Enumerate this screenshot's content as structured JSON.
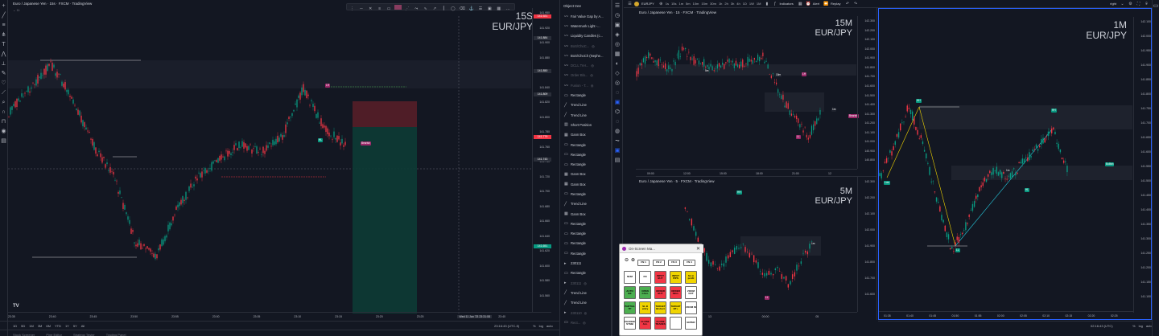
{
  "left_chart": {
    "title": "Euro / Japanese Yen · 15s · FXCM · TradingView",
    "big_tf": "15S",
    "big_pair": "EUR/JPY",
    "prices": [
      "141.950",
      "141.920",
      "141.900",
      "141.880",
      "141.860",
      "141.840",
      "141.820",
      "141.800",
      "141.780",
      "141.760",
      "141.740",
      "141.720",
      "141.700",
      "141.680",
      "141.660",
      "141.640",
      "141.620",
      "141.600",
      "141.580",
      "141.560"
    ],
    "price_tags": [
      {
        "label": "141.921",
        "color": "#f23645",
        "bind_hint": "top"
      },
      {
        "label": "141.884",
        "color": "#2a2e39"
      },
      {
        "label": "141.850",
        "color": "#2a2e39"
      },
      {
        "label": "141.809",
        "color": "#2a2e39"
      },
      {
        "label": "141.779",
        "color": "#f23645"
      },
      {
        "label": "141.743",
        "color": "#2a2e39"
      },
      {
        "label": "141.651",
        "color": "#089981"
      }
    ],
    "times": [
      "23:35",
      "23:40",
      "23:45",
      "23:50",
      "23:55",
      "23:00",
      "23:05",
      "23:10",
      "23:15",
      "23:20",
      "23:25",
      "Wed 11 Jan '23  23:31:08",
      "23:40"
    ],
    "bottom_ranges": [
      "1D",
      "5D",
      "1M",
      "3M",
      "6M",
      "YTD",
      "1Y",
      "5Y",
      "All"
    ],
    "bottom_time": "23:16:43 (UTC-5)",
    "bottom_opts": [
      "%",
      "log",
      "auto"
    ],
    "labels": {
      "lh": "LH",
      "hl": "HL",
      "bearish": "Bearish"
    }
  },
  "object_tree": {
    "header": "Object tree",
    "items": [
      {
        "icon": "〰",
        "label": "Fair Value Gap by A...",
        "dim": false
      },
      {
        "icon": "〰",
        "label": "Watermark Light -...",
        "dim": false
      },
      {
        "icon": "〰",
        "label": "Liquidity Candles (c...",
        "dim": false
      },
      {
        "icon": "〰",
        "label": "BoS/ChoC...",
        "dim": true
      },
      {
        "icon": "〰",
        "label": "BoS/ChoCh (Nephe...",
        "dim": false
      },
      {
        "icon": "〰",
        "label": "DCLL Trer...",
        "dim": true
      },
      {
        "icon": "〰",
        "label": "Order Blo...",
        "dim": true
      },
      {
        "icon": "〰",
        "label": "Fusion - T...",
        "dim": true
      },
      {
        "icon": "▭",
        "label": "Rectangle",
        "dim": false
      },
      {
        "icon": "╱",
        "label": "Trend Line",
        "dim": false
      },
      {
        "icon": "╱",
        "label": "Trend Line",
        "dim": false
      },
      {
        "icon": "▥",
        "label": "Short Position",
        "dim": false
      },
      {
        "icon": "▦",
        "label": "Gann Box",
        "dim": false
      },
      {
        "icon": "▭",
        "label": "Rectangle",
        "dim": false
      },
      {
        "icon": "▭",
        "label": "Rectangle",
        "dim": false
      },
      {
        "icon": "▭",
        "label": "Rectangle",
        "dim": false
      },
      {
        "icon": "▦",
        "label": "Gann Box",
        "dim": false
      },
      {
        "icon": "▦",
        "label": "Gann Box",
        "dim": false
      },
      {
        "icon": "▭",
        "label": "Rectangle",
        "dim": false
      },
      {
        "icon": "╱",
        "label": "Trend Line",
        "dim": false
      },
      {
        "icon": "▦",
        "label": "Gann Box",
        "dim": false
      },
      {
        "icon": "▭",
        "label": "Rectangle",
        "dim": false
      },
      {
        "icon": "▭",
        "label": "Rectangle",
        "dim": false
      },
      {
        "icon": "▭",
        "label": "Rectangle",
        "dim": false
      },
      {
        "icon": "▭",
        "label": "Rectangle",
        "dim": false
      },
      {
        "icon": "▸",
        "label": "230111",
        "dim": false
      },
      {
        "icon": "▭",
        "label": "Rectangle",
        "dim": false
      },
      {
        "icon": "▸",
        "label": "230111",
        "dim": true
      },
      {
        "icon": "╱",
        "label": "Trend Line",
        "dim": false
      },
      {
        "icon": "╱",
        "label": "Trend Line",
        "dim": false
      },
      {
        "icon": "▸",
        "label": "230110",
        "dim": true
      },
      {
        "icon": "▭",
        "label": "Rect...",
        "dim": true
      }
    ]
  },
  "top_toolbar": {
    "symbol": "EURJPY",
    "timeframes": [
      "1s",
      "15s",
      "1m",
      "5m",
      "10m",
      "15m",
      "30m",
      "1h",
      "2h",
      "3h",
      "4h",
      "1D",
      "1W",
      "1M"
    ],
    "indicators": "Indicators",
    "alert": "Alert",
    "replay": "Replay",
    "layout": "right"
  },
  "chart_15m": {
    "title": "Euro / Japanese Yen · 15 · FXCM · TradingView",
    "big_tf": "15M",
    "big_pair": "EUR/JPY",
    "prices": [
      "142.300",
      "142.200",
      "142.100",
      "142.000",
      "141.900",
      "141.800",
      "141.700",
      "141.600",
      "141.500",
      "141.400",
      "141.300",
      "141.200",
      "141.100",
      "141.000",
      "140.900",
      "140.800"
    ],
    "times": [
      "09:00",
      "12:00",
      "15:00",
      "18:00",
      "21:00",
      "12"
    ],
    "labels": {
      "lh": "LH",
      "hl": "HL",
      "ll": "LL",
      "tf1": "5m",
      "tf2": "15m",
      "tf3": "1m",
      "bearish": "Bearish"
    }
  },
  "chart_5m": {
    "title": "Euro / Japanese Yen · 5 · FXCM · TradingView",
    "big_tf": "5M",
    "big_pair": "EUR/JPY",
    "prices": [
      "142.300",
      "142.200",
      "142.100",
      "142.000",
      "141.900",
      "141.800",
      "141.700",
      "141.600"
    ],
    "times": [
      "13",
      "00:00",
      "05"
    ],
    "labels": {
      "hh": "HH",
      "ll": "LL",
      "tf": "1m"
    }
  },
  "chart_1m": {
    "big_tf": "1M",
    "big_pair": "EUR/JPY",
    "prices": [
      "142.100",
      "142.000",
      "141.950",
      "141.900",
      "141.850",
      "141.800",
      "141.750",
      "141.700",
      "141.650",
      "141.600",
      "141.550",
      "141.500",
      "141.450",
      "141.400",
      "141.350",
      "141.300",
      "141.250",
      "141.200",
      "141.150",
      "141.100"
    ],
    "times": [
      "01:35",
      "01:40",
      "01:45",
      "01:50",
      "01:55",
      "02:00",
      "02:05",
      "02:10",
      "02:15",
      "02:20",
      "02:25"
    ],
    "bottom_time": "02:16:43 (UTC)",
    "bottom_opts": [
      "%",
      "log",
      "auto"
    ],
    "labels": {
      "hh": "HH",
      "ll": "LL",
      "low": "Low",
      "bullish": "Bullish",
      "tf": "1m",
      "hl": "HL",
      "lh": "LH"
    }
  },
  "osm": {
    "title": "On-Screen Ma...",
    "buttons": [
      {
        "label": "FN 1",
        "color": "#ffffff"
      },
      {
        "label": "FN 2",
        "color": "#ffffff"
      },
      {
        "label": "FN 3",
        "color": "#ffffff"
      },
      {
        "label": "FN 4",
        "color": "#ffffff"
      },
      {
        "label": "NUM",
        "color": "#ffffff"
      },
      {
        "label": "FN",
        "color": "#ffffff"
      },
      {
        "label": "INPUT BUY",
        "color": "#f23645"
      },
      {
        "label": "INPUT PIPS",
        "color": "#f0d400"
      },
      {
        "label": "SL in profit",
        "color": "#f0d400"
      },
      {
        "label": "AUTO BE",
        "color": "#4caf50"
      },
      {
        "label": "OPEN CALL",
        "color": "#4caf50"
      },
      {
        "label": "ORDER BUY",
        "color": "#f23645"
      },
      {
        "label": "ORDER SELL",
        "color": "#f23645"
      },
      {
        "label": "ZOOM OUT",
        "color": "#ffffff"
      },
      {
        "label": "PARTIAL TP",
        "color": "#4caf50"
      },
      {
        "label": "SL B entry",
        "color": "#f0d400"
      },
      {
        "label": "TARGET B/short",
        "color": "#f0d400"
      },
      {
        "label": "TARGET BT+",
        "color": "#f0d400"
      },
      {
        "label": "ZOOM IN",
        "color": "#ffffff"
      },
      {
        "label": "CHANGE SYMB",
        "color": "#ffffff"
      },
      {
        "label": "CLOSE ALL",
        "color": "#f23645"
      },
      {
        "label": "CLOSE TRADES",
        "color": "#f23645"
      },
      {
        "label": "",
        "color": "#ffffff"
      },
      {
        "label": "ENTER",
        "color": "#ffffff"
      }
    ]
  },
  "bottom_tabs": [
    "Stock Screener",
    "Pine Editor",
    "Strategy Tester",
    "Trading Panel"
  ]
}
